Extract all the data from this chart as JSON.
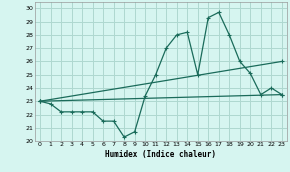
{
  "xlabel": "Humidex (Indice chaleur)",
  "background_color": "#d6f5f0",
  "grid_color": "#aed8d0",
  "line_color": "#1a6b5a",
  "xlim": [
    -0.5,
    23.5
  ],
  "ylim": [
    20,
    30.5
  ],
  "yticks": [
    20,
    21,
    22,
    23,
    24,
    25,
    26,
    27,
    28,
    29,
    30
  ],
  "xticks": [
    0,
    1,
    2,
    3,
    4,
    5,
    6,
    7,
    8,
    9,
    10,
    11,
    12,
    13,
    14,
    15,
    16,
    17,
    18,
    19,
    20,
    21,
    22,
    23
  ],
  "series1": [
    23.0,
    22.8,
    22.2,
    22.2,
    22.2,
    22.2,
    21.5,
    21.5,
    20.3,
    20.7,
    23.4,
    25.0,
    27.0,
    28.0,
    28.2,
    25.0,
    29.3,
    29.7,
    28.0,
    26.0,
    25.1,
    23.5,
    24.0,
    23.5
  ],
  "trend1_x": [
    0,
    23
  ],
  "trend1_y": [
    23.0,
    26.0
  ],
  "trend2_x": [
    0,
    23
  ],
  "trend2_y": [
    23.0,
    23.5
  ]
}
